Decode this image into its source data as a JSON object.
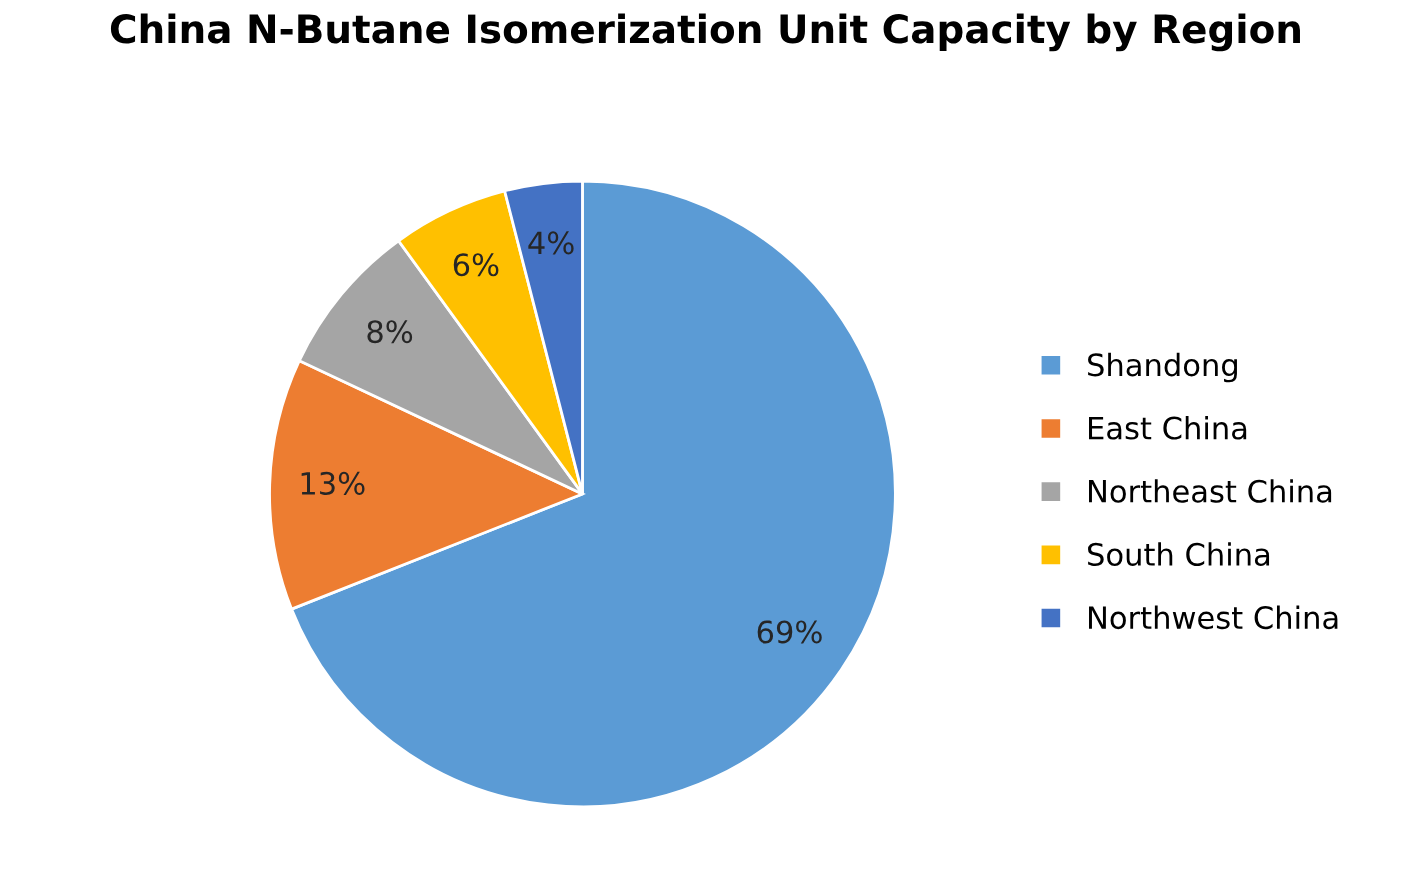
{
  "chart_data": {
    "type": "pie",
    "title": "China N-Butane Isomerization Unit Capacity by Region",
    "categories": [
      "Shandong",
      "East China",
      "Northeast China",
      "South China",
      "Northwest China"
    ],
    "values": [
      69,
      13,
      8,
      6,
      4
    ],
    "colors": [
      "#5b9bd5",
      "#ed7d31",
      "#a5a5a5",
      "#ffc000",
      "#4472c4"
    ],
    "value_labels": [
      "69%",
      "13%",
      "8%",
      "6%",
      "4%"
    ],
    "legend": "right"
  }
}
